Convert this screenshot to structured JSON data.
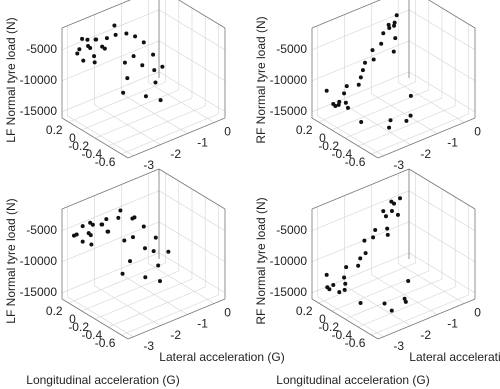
{
  "chart_data": [
    {
      "type": "scatter3d",
      "z_label": "LF Normal tyre load (N)",
      "color": "#111111",
      "grid": true,
      "xlim": [
        -3.2,
        0.4
      ],
      "xticks": [
        -3,
        -2,
        -1,
        0
      ],
      "ylim": [
        -0.7,
        0.3
      ],
      "yticks": [
        0.2,
        0,
        -0.2,
        -0.4,
        -0.6
      ],
      "zlim": [
        -16000,
        -1500
      ],
      "zticks": [
        -15000,
        -10000,
        -5000
      ],
      "x": [
        -2.8,
        -2.6,
        -2.5,
        -2.4,
        -2.3,
        -2.2,
        -2.6,
        -2.7,
        -2.1,
        -1.9,
        -1.7,
        -1.5,
        -1.3,
        -1.1,
        -0.9,
        -0.8,
        -1.0,
        -1.2,
        -1.4,
        -1.6,
        -2.0,
        -2.4,
        -2.9,
        -3.0,
        -2.5,
        -2.2,
        -1.8,
        -1.5,
        -1.2,
        -0.7
      ],
      "y": [
        0.2,
        0.15,
        0.1,
        0.2,
        0.15,
        0.1,
        0.05,
        0.2,
        0.1,
        0.15,
        0.1,
        0.2,
        0.1,
        0.05,
        0,
        -0.1,
        -0.2,
        -0.1,
        -0.05,
        0,
        -0.2,
        -0.3,
        0.1,
        0.15,
        0.2,
        0.2,
        -0.4,
        -0.5,
        -0.3,
        -0.2
      ],
      "z": [
        -5000,
        -4500,
        -6000,
        -5500,
        -4000,
        -5000,
        -6500,
        -3500,
        -5500,
        -4500,
        -4000,
        -3500,
        -4500,
        -5000,
        -6000,
        -7500,
        -9000,
        -8500,
        -7000,
        -8000,
        -8500,
        -9500,
        -6000,
        -5000,
        -4000,
        -4500,
        -10500,
        -11000,
        -10000,
        -9000
      ]
    },
    {
      "type": "scatter3d",
      "z_label": "RF Normal tyre load (N)",
      "color": "#111111",
      "grid": true,
      "xlim": [
        -3.2,
        0.4
      ],
      "xticks": [
        -3,
        -2,
        -1,
        0
      ],
      "ylim": [
        -0.7,
        0.3
      ],
      "yticks": [
        0.2,
        0,
        -0.2,
        -0.4,
        -0.6
      ],
      "zlim": [
        -16000,
        -1500
      ],
      "zticks": [
        -15000,
        -10000,
        -5000
      ],
      "x": [
        -2.9,
        -2.8,
        -2.7,
        -2.6,
        -2.8,
        -2.5,
        -2.9,
        -2.4,
        -2.2,
        -2.0,
        -1.8,
        -1.6,
        -1.4,
        -1.2,
        -1.0,
        -0.8,
        -0.6,
        -0.5,
        -0.4,
        -0.3,
        -0.6,
        -0.7,
        -2.0,
        -1.5,
        -1.0,
        -2.6,
        -2.3,
        -1.9,
        -2.7,
        -0.9
      ],
      "y": [
        0.1,
        0.05,
        0.15,
        0,
        -0.05,
        0.1,
        0.2,
        0.1,
        0,
        0.05,
        0.1,
        0.15,
        0.1,
        0.2,
        0.15,
        0.2,
        0.2,
        0.15,
        0.2,
        0.2,
        0.1,
        0.15,
        -0.4,
        -0.5,
        -0.3,
        -0.2,
        -0.5,
        -0.6,
        0.1,
        0
      ],
      "z": [
        -13000,
        -12500,
        -14000,
        -13500,
        -12000,
        -12000,
        -11500,
        -11000,
        -10500,
        -10000,
        -9500,
        -9000,
        -8500,
        -8000,
        -7000,
        -6000,
        -5000,
        -4500,
        -5500,
        -4000,
        -6500,
        -5000,
        -14000,
        -13500,
        -12500,
        -14500,
        -14000,
        -13000,
        -13500,
        -7500
      ]
    },
    {
      "type": "scatter3d",
      "z_label": "LF Normal tyre load (N)",
      "x_label": "Lateral acceleration (G)",
      "y_label": "Longitudinal acceleration (G)",
      "color": "#111111",
      "grid": true,
      "xlim": [
        -3.2,
        0.4
      ],
      "xticks": [
        -3,
        -2,
        -1,
        0
      ],
      "ylim": [
        -0.7,
        0.3
      ],
      "yticks": [
        0.2,
        0,
        -0.2,
        -0.4,
        -0.6
      ],
      "zlim": [
        -16000,
        -1500
      ],
      "zticks": [
        -15000,
        -10000,
        -5000
      ],
      "x": [
        -2.9,
        -2.7,
        -2.5,
        -2.3,
        -2.2,
        -2.1,
        -2.6,
        -2.8,
        -2.0,
        -1.8,
        -1.6,
        -1.4,
        -1.2,
        -1.0,
        -0.9,
        -0.7,
        -0.9,
        -1.1,
        -1.3,
        -1.5,
        -1.9,
        -2.3,
        -2.8,
        -3.0,
        -2.4,
        -2.1,
        -1.7,
        -1.4,
        -1.1,
        -0.6
      ],
      "y": [
        0.2,
        0.1,
        0.15,
        0.2,
        0.1,
        0.05,
        0.1,
        0.15,
        0.1,
        0.2,
        0.1,
        0.15,
        0.05,
        0.1,
        0,
        -0.1,
        -0.15,
        -0.1,
        0,
        0.05,
        -0.2,
        -0.25,
        0.15,
        0.2,
        0.2,
        0.15,
        -0.35,
        -0.45,
        -0.3,
        -0.25
      ],
      "z": [
        -5500,
        -5000,
        -6000,
        -5000,
        -4500,
        -5500,
        -7000,
        -4000,
        -6000,
        -5000,
        -4500,
        -4000,
        -5000,
        -5500,
        -6500,
        -8000,
        -9500,
        -9000,
        -7500,
        -8000,
        -9000,
        -10000,
        -6500,
        -5500,
        -4500,
        -5000,
        -11000,
        -11500,
        -10500,
        -9500
      ]
    },
    {
      "type": "scatter3d",
      "z_label": "RF Normal tyre load (N)",
      "x_label": "Lateral acceleration (G)",
      "y_label": "Longitudinal acceleration (G)",
      "color": "#111111",
      "grid": true,
      "xlim": [
        -3.2,
        0.4
      ],
      "xticks": [
        -3,
        -2,
        -1,
        0
      ],
      "ylim": [
        -0.7,
        0.3
      ],
      "yticks": [
        0.2,
        0,
        -0.2,
        -0.4,
        -0.6
      ],
      "zlim": [
        -16000,
        -1500
      ],
      "zticks": [
        -15000,
        -10000,
        -5000
      ],
      "x": [
        -3.0,
        -2.9,
        -2.8,
        -2.6,
        -2.7,
        -2.5,
        -2.9,
        -2.3,
        -2.1,
        -1.9,
        -1.7,
        -1.5,
        -1.3,
        -1.1,
        -0.9,
        -0.7,
        -0.6,
        -0.5,
        -0.4,
        -0.3,
        -0.5,
        -0.8,
        -2.1,
        -1.6,
        -1.1,
        -2.5,
        -2.2,
        -1.8,
        -2.8,
        -1.0
      ],
      "y": [
        0.15,
        0.1,
        0.2,
        0.05,
        0,
        0.1,
        0.2,
        0.15,
        0.05,
        0.1,
        0.1,
        0.2,
        0.15,
        0.2,
        0.1,
        0.2,
        0.15,
        0.2,
        0.2,
        0.15,
        0.1,
        0.2,
        -0.35,
        -0.45,
        -0.3,
        -0.15,
        -0.5,
        -0.55,
        0.05,
        0.05
      ],
      "z": [
        -13500,
        -13000,
        -14500,
        -14000,
        -12500,
        -12500,
        -12000,
        -11500,
        -11000,
        -10500,
        -10000,
        -9000,
        -8500,
        -8000,
        -7500,
        -6500,
        -5500,
        -4500,
        -5000,
        -4000,
        -6000,
        -5500,
        -14500,
        -14000,
        -13000,
        -15000,
        -14500,
        -13500,
        -14000,
        -8000
      ]
    }
  ]
}
